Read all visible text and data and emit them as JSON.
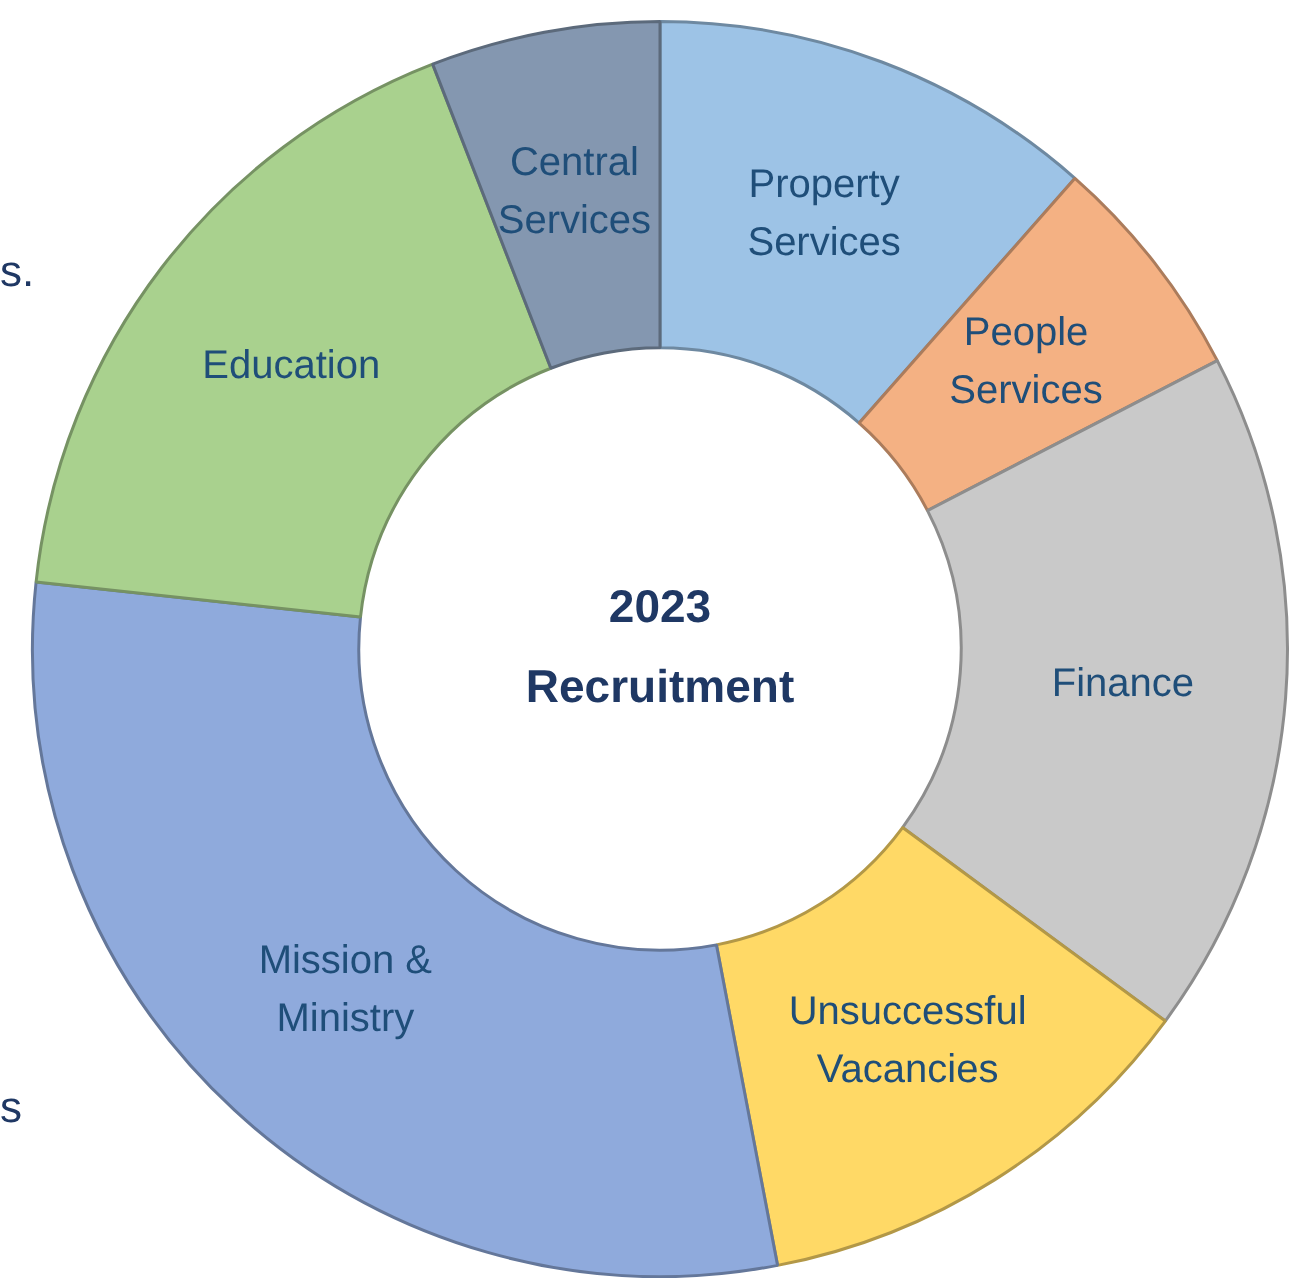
{
  "chart_data": {
    "type": "donut",
    "title": "2023 Recruitment",
    "categories": [
      "Property Services",
      "People Services",
      "Finance",
      "Unsuccessful Vacancies",
      "Mission & Ministry",
      "Education",
      "Central Services"
    ],
    "values": [
      11.5,
      5.9,
      17.7,
      11.9,
      29.7,
      17.4,
      5.9
    ],
    "colors": [
      "#9dc3e6",
      "#f4b183",
      "#c9c9c9",
      "#ffd966",
      "#8faadc",
      "#a9d18e",
      "#8497b0"
    ],
    "legend": false,
    "annotations": [
      "s.",
      "s"
    ]
  }
}
